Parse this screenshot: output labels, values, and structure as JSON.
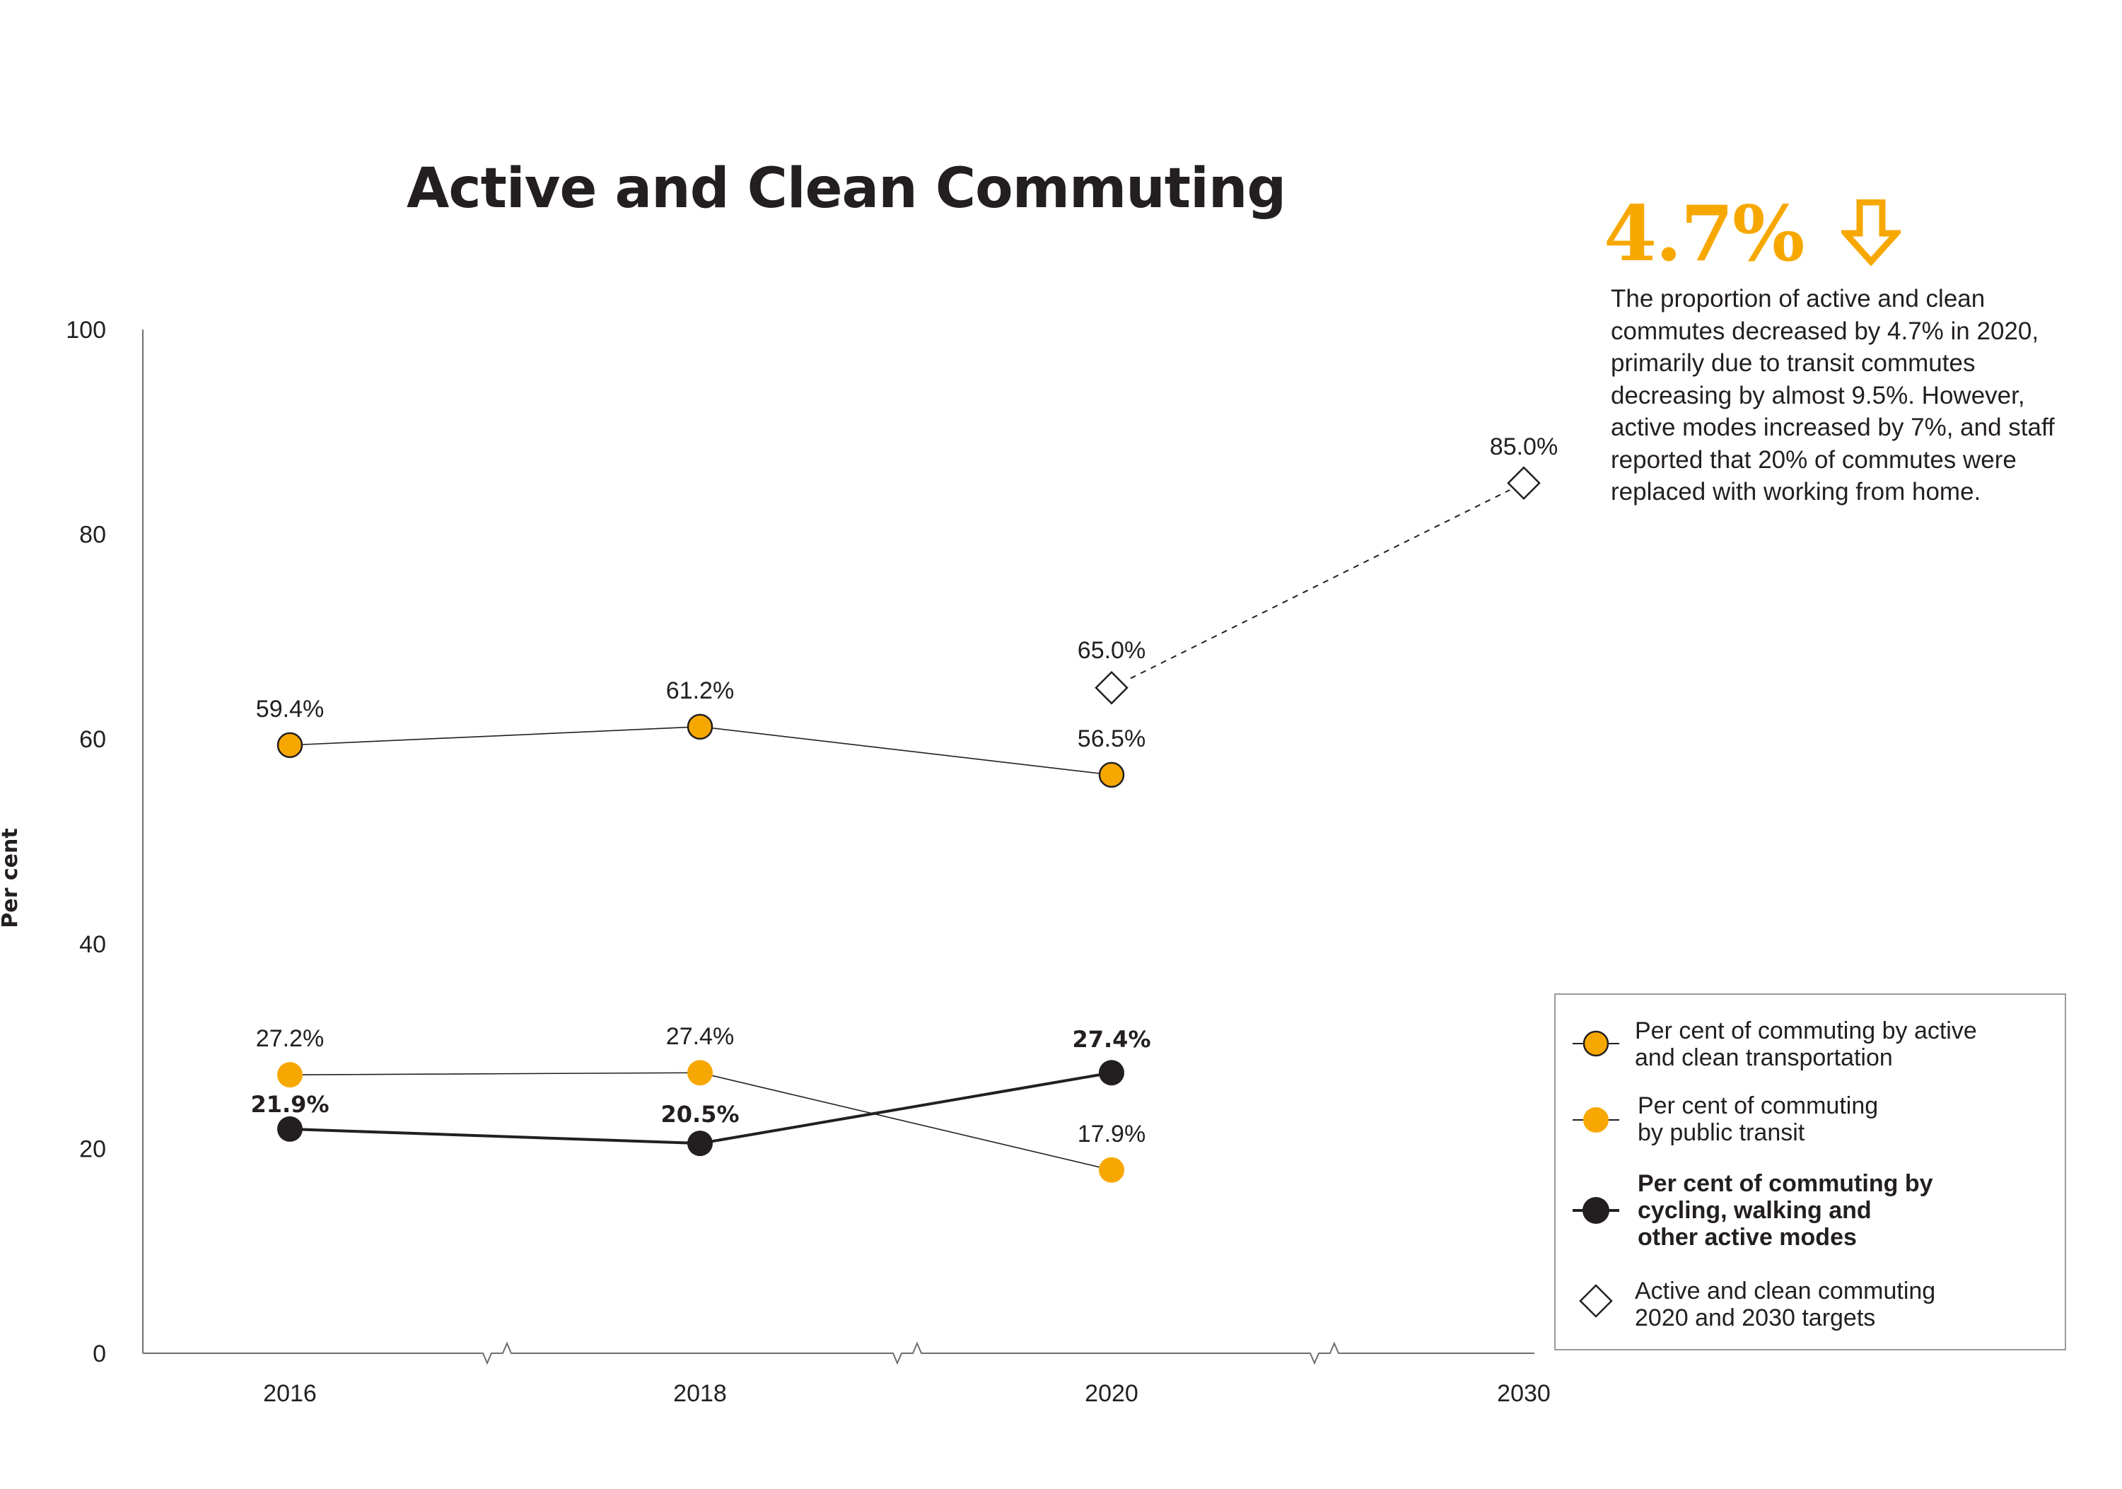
{
  "chart_data": {
    "type": "line",
    "title": "Active and Clean Commuting",
    "ylabel": "Per cent",
    "xlabel": "",
    "ylim": [
      0,
      100
    ],
    "yticks": [
      "0",
      "20",
      "40",
      "60",
      "80",
      "100"
    ],
    "categories": [
      "2016",
      "2018",
      "2020",
      "2030"
    ],
    "axis_breaks": true,
    "grid": false,
    "legend_position": "bottom-right",
    "series": [
      {
        "name": "Per cent of commuting by active and clean transportation",
        "key": "active_clean",
        "values": [
          59.4,
          61.2,
          56.5,
          null
        ],
        "labels": [
          "59.4%",
          "61.2%",
          "56.5%",
          null
        ],
        "color": "#f7a800",
        "marker": "circle-outlined",
        "line": "thin-solid"
      },
      {
        "name": "Per cent of commuting by public transit",
        "key": "transit",
        "values": [
          27.2,
          27.4,
          17.9,
          null
        ],
        "labels": [
          "27.2%",
          "27.4%",
          "17.9%",
          null
        ],
        "color": "#f7a800",
        "marker": "circle",
        "line": "thin-solid"
      },
      {
        "name": "Per cent of commuting by cycling, walking and other active modes",
        "key": "active_modes",
        "values": [
          21.9,
          20.5,
          27.4,
          null
        ],
        "labels": [
          "21.9%",
          "20.5%",
          "27.4%",
          null
        ],
        "color": "#231f20",
        "marker": "circle",
        "line": "bold-solid",
        "bold_labels": true
      },
      {
        "name": "Active and clean commuting 2020 and 2030 targets",
        "key": "targets",
        "values": [
          null,
          null,
          65.0,
          85.0
        ],
        "labels": [
          null,
          null,
          "65.0%",
          "85.0%"
        ],
        "color": "#231f20",
        "marker": "diamond-outline",
        "line": "dashed"
      }
    ]
  },
  "callout": {
    "stat": "4.7%",
    "arrow_icon": "down-arrow-icon",
    "accent_color": "#f7a800",
    "text": "The proportion of active and clean commutes decreased by 4.7% in 2020, primarily due to transit commutes decreasing by almost 9.5%. However, active modes increased by 7%, and staff reported that 20% of commutes were replaced with working from home."
  },
  "legend": {
    "items": [
      {
        "line1": "Per cent of commuting by active",
        "line2": "and clean transportation",
        "line3": ""
      },
      {
        "line1": "Per cent of commuting",
        "line2": "by public transit",
        "line3": ""
      },
      {
        "line1": "Per cent of commuting by",
        "line2": "cycling, walking and",
        "line3": "other active modes"
      },
      {
        "line1": "Active and clean commuting",
        "line2": "2020 and 2030 targets",
        "line3": ""
      }
    ]
  }
}
